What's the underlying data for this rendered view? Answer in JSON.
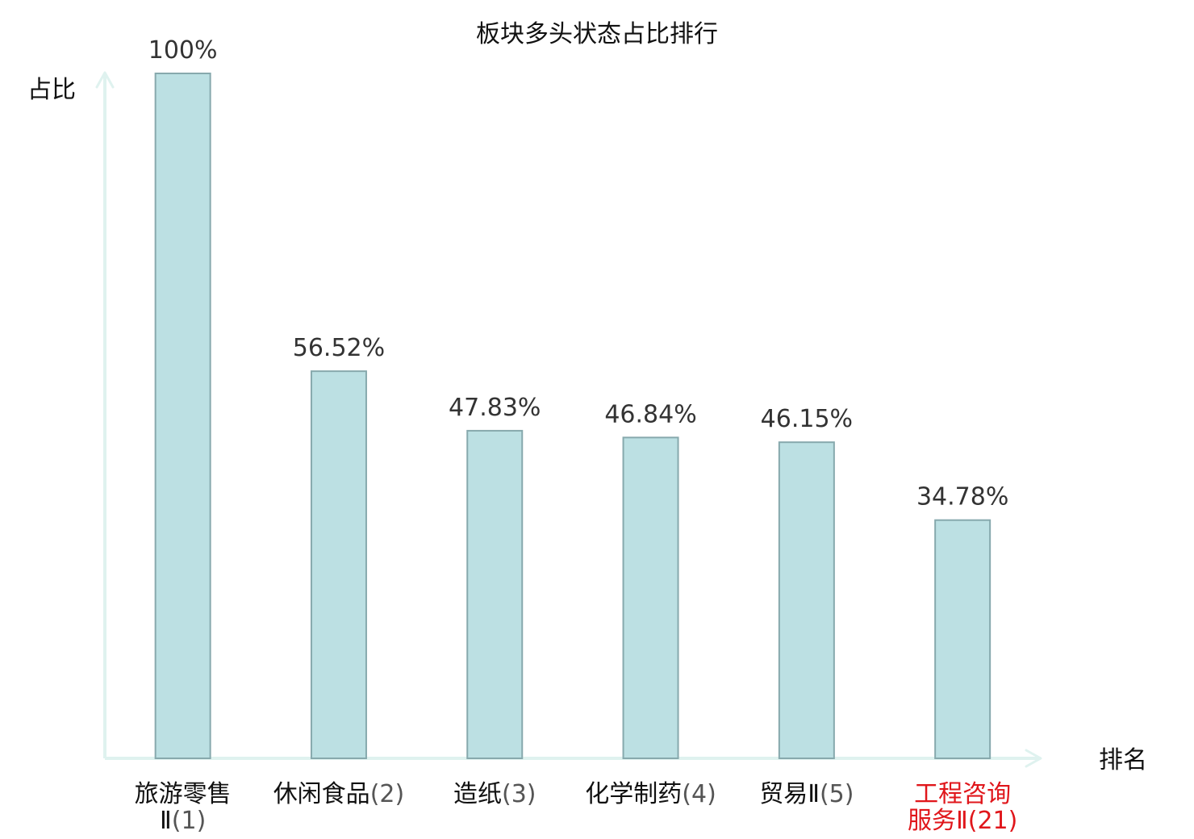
{
  "chart_data": {
    "type": "bar",
    "title": "板块多头状态占比排行",
    "xlabel": "排名",
    "ylabel": "占比",
    "ylim": [
      0,
      100
    ],
    "grid": false,
    "categories": [
      {
        "name_lines": [
          "旅游零售",
          "Ⅱ"
        ],
        "rank": "(1)",
        "highlight": false
      },
      {
        "name_lines": [
          "休闲食品"
        ],
        "rank": "(2)",
        "highlight": false
      },
      {
        "name_lines": [
          "造纸"
        ],
        "rank": "(3)",
        "highlight": false
      },
      {
        "name_lines": [
          "化学制药"
        ],
        "rank": "(4)",
        "highlight": false
      },
      {
        "name_lines": [
          "贸易Ⅱ"
        ],
        "rank": "(5)",
        "highlight": false
      },
      {
        "name_lines": [
          "工程咨询",
          "服务Ⅱ"
        ],
        "rank": "(21)",
        "highlight": true
      }
    ],
    "values": [
      100,
      56.52,
      47.83,
      46.84,
      46.15,
      34.78
    ],
    "value_labels": [
      "100%",
      "56.52%",
      "47.83%",
      "46.84%",
      "46.15%",
      "34.78%"
    ],
    "colors": {
      "bar_fill": "#bce0e3",
      "bar_stroke": "#87a9ad",
      "axis": "#dff2ef",
      "highlight_text": "#e0161b"
    }
  }
}
